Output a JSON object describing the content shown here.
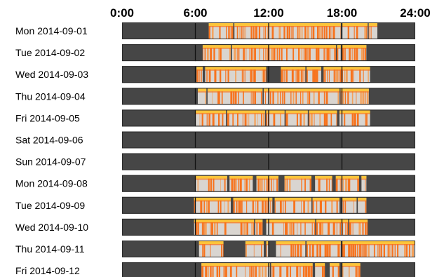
{
  "chart_data": {
    "type": "heatmap",
    "title": "",
    "x_ticks": [
      "0:00",
      "6:00",
      "12:00",
      "18:00",
      "24:00"
    ],
    "x_domain_hours": [
      0,
      24
    ],
    "rows": [
      {
        "label": "Mon 2014-09-01",
        "segments": [
          [
            7.1,
            9.1,
            0.7
          ],
          [
            9.2,
            12.0,
            0.8
          ],
          [
            12.0,
            15.5,
            0.6
          ],
          [
            15.5,
            17.9,
            0.7
          ],
          [
            18.0,
            20.1,
            0.5
          ],
          [
            20.2,
            20.9,
            0.4
          ]
        ]
      },
      {
        "label": "Tue 2014-09-02",
        "segments": [
          [
            6.6,
            8.9,
            0.7
          ],
          [
            9.0,
            11.8,
            0.6
          ],
          [
            11.8,
            14.5,
            0.8
          ],
          [
            14.5,
            17.5,
            0.7
          ],
          [
            17.6,
            17.9,
            0.4
          ],
          [
            18.0,
            20.0,
            0.7
          ]
        ]
      },
      {
        "label": "Wed 2014-09-03",
        "segments": [
          [
            6.1,
            6.6,
            0.5
          ],
          [
            6.8,
            11.8,
            0.7
          ],
          [
            13.0,
            15.0,
            0.7
          ],
          [
            15.1,
            16.3,
            0.5
          ],
          [
            16.5,
            18.0,
            0.7
          ],
          [
            18.0,
            20.3,
            0.6
          ]
        ]
      },
      {
        "label": "Thu 2014-09-04",
        "segments": [
          [
            6.2,
            6.9,
            0.5
          ],
          [
            7.0,
            9.5,
            0.3
          ],
          [
            9.5,
            11.5,
            0.6
          ],
          [
            11.6,
            15.4,
            0.6
          ],
          [
            15.4,
            17.8,
            0.4
          ],
          [
            17.9,
            20.2,
            0.7
          ]
        ]
      },
      {
        "label": "Fri 2014-09-05",
        "segments": [
          [
            6.0,
            8.5,
            0.5
          ],
          [
            8.6,
            11.7,
            0.6
          ],
          [
            11.8,
            13.3,
            0.5
          ],
          [
            13.4,
            15.2,
            0.6
          ],
          [
            15.3,
            17.6,
            0.6
          ],
          [
            17.8,
            20.3,
            0.5
          ]
        ]
      },
      {
        "label": "Sat 2014-09-06",
        "segments": []
      },
      {
        "label": "Sun 2014-09-07",
        "segments": []
      },
      {
        "label": "Mon 2014-09-08",
        "segments": [
          [
            6.0,
            8.6,
            0.5
          ],
          [
            8.8,
            10.7,
            0.6
          ],
          [
            11.0,
            12.8,
            0.6
          ],
          [
            13.3,
            15.5,
            0.5
          ],
          [
            15.8,
            17.2,
            0.6
          ],
          [
            17.5,
            19.4,
            0.6
          ],
          [
            19.6,
            20.0,
            0.5
          ]
        ]
      },
      {
        "label": "Tue 2014-09-09",
        "segments": [
          [
            5.9,
            8.9,
            0.6
          ],
          [
            9.1,
            12.3,
            0.6
          ],
          [
            12.5,
            15.5,
            0.5
          ],
          [
            15.6,
            17.8,
            0.5
          ],
          [
            18.0,
            19.2,
            0.6
          ],
          [
            19.3,
            20.0,
            0.4
          ]
        ]
      },
      {
        "label": "Wed 2014-09-10",
        "segments": [
          [
            5.9,
            10.8,
            0.5
          ],
          [
            10.9,
            11.5,
            0.6
          ],
          [
            11.8,
            15.8,
            0.6
          ],
          [
            15.9,
            18.5,
            0.7
          ],
          [
            18.6,
            20.1,
            0.5
          ]
        ]
      },
      {
        "label": "Thu 2014-09-11",
        "segments": [
          [
            6.3,
            8.3,
            0.6
          ],
          [
            10.1,
            11.6,
            0.6
          ],
          [
            11.8,
            12.0,
            0.5
          ],
          [
            12.6,
            15.0,
            0.5
          ],
          [
            15.1,
            17.9,
            0.7
          ],
          [
            18.0,
            24.0,
            0.9
          ]
        ]
      },
      {
        "label": "Fri 2014-09-12",
        "segments": [
          [
            6.5,
            12.1,
            0.6
          ],
          [
            12.2,
            15.6,
            0.7
          ],
          [
            15.8,
            16.6,
            0.6
          ],
          [
            17.0,
            17.8,
            0.6
          ],
          [
            18.0,
            19.5,
            0.5
          ]
        ]
      }
    ],
    "colors": {
      "background": "#464646",
      "activity_top": "#fcc43a",
      "activity_orange": "#f7731d",
      "activity_light": "#d9d5d0",
      "gridline": "#111111",
      "frame": "#2a2a2a"
    }
  }
}
